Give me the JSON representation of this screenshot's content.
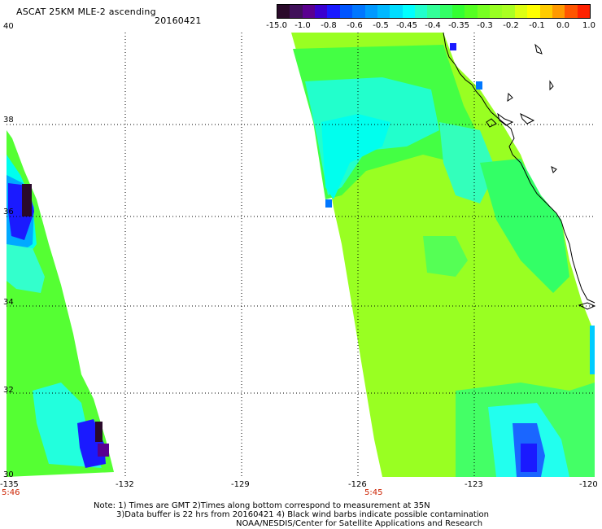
{
  "header": {
    "title": "ASCAT 25KM MLE-2 ascending",
    "date": "20160421"
  },
  "colorbar": {
    "labels": [
      "-15.0",
      "-1.0",
      "-0.8",
      "-0.6",
      "-0.5",
      "-0.45",
      "-0.4",
      "-0.35",
      "-0.3",
      "-0.2",
      "-0.1",
      "0.0",
      "1.0"
    ],
    "colors": [
      "#2a0a2a",
      "#5a0090",
      "#1a1aff",
      "#0077ff",
      "#00b8ff",
      "#00ffff",
      "#33ff99",
      "#33ff33",
      "#77ff22",
      "#aaff22",
      "#ffff00",
      "#ff9900",
      "#ff2200"
    ]
  },
  "map": {
    "lat_labels": [
      "40",
      "38",
      "36",
      "34",
      "32",
      "30"
    ],
    "lon_labels": [
      "-135",
      "-132",
      "-129",
      "-126",
      "-123",
      "-120"
    ],
    "pass_times": [
      "5:46",
      "5:45"
    ],
    "land_color": "#ffffff",
    "ocean_fill_color": "#88ff22"
  },
  "notes": {
    "line1": "Note: 1) Times are GMT 2)Times along bottom correspond to measurement at 35N",
    "line2": "3)Data buffer is 22 hrs from 20160421 4) Black wind barbs indicate possible contamination",
    "line3": "NOAA/NESDIS/Center for Satellite Applications and Research"
  }
}
